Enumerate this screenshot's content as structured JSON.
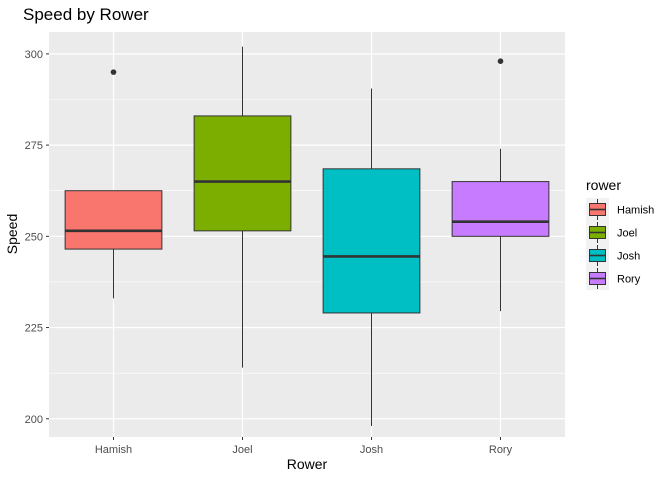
{
  "chart_data": {
    "type": "boxplot",
    "title": "Speed by Rower",
    "xlabel": "Rower",
    "ylabel": "Speed",
    "ylim": [
      195,
      306
    ],
    "yticks": [
      200,
      225,
      250,
      275,
      300
    ],
    "grid": true,
    "legend": {
      "title": "rower",
      "position": "right"
    },
    "categories": [
      "Hamish",
      "Joel",
      "Josh",
      "Rory"
    ],
    "series": [
      {
        "name": "Hamish",
        "color": "#F8766D",
        "min": 233,
        "q1": 246.5,
        "median": 251.5,
        "q3": 262.5,
        "max": 262.5,
        "outliers": [
          295
        ]
      },
      {
        "name": "Joel",
        "color": "#7CAE00",
        "min": 214,
        "q1": 251.5,
        "median": 265,
        "q3": 283,
        "max": 302,
        "outliers": []
      },
      {
        "name": "Josh",
        "color": "#00BFC4",
        "min": 198,
        "q1": 229,
        "median": 244.5,
        "q3": 268.5,
        "max": 290.5,
        "outliers": []
      },
      {
        "name": "Rory",
        "color": "#C77CFF",
        "min": 229.5,
        "q1": 250,
        "median": 254,
        "q3": 265,
        "max": 274,
        "outliers": [
          298
        ]
      }
    ]
  }
}
